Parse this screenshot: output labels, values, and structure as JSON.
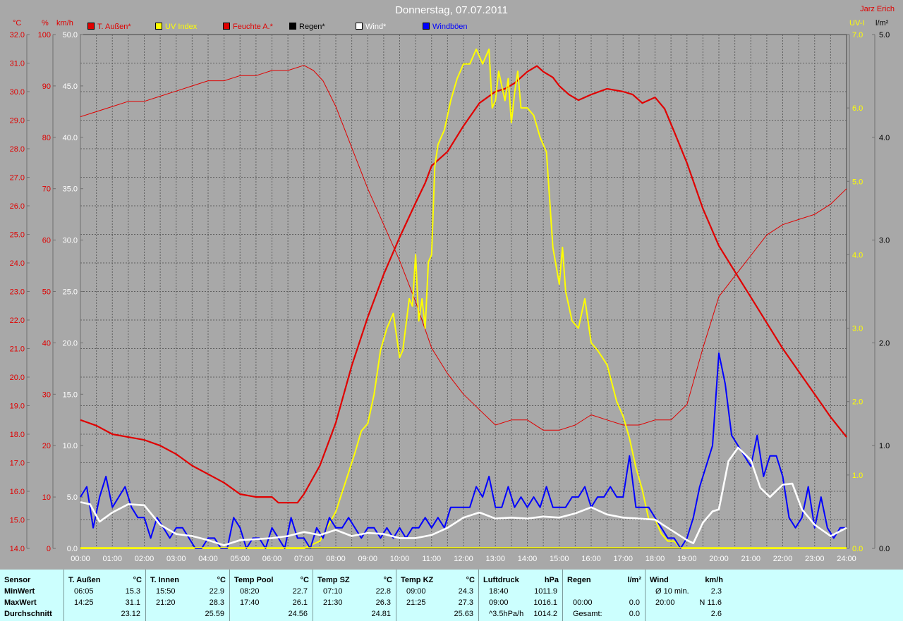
{
  "title": "Donnerstag, 07.07.2011",
  "author": "Jarz Erich",
  "units": {
    "temp": "°C",
    "hum": "%",
    "wind": "km/h",
    "uv": "UV-I",
    "rain": "l/m²"
  },
  "legend": [
    {
      "label": "T. Außen*",
      "color": "#e00000"
    },
    {
      "label": "UV Index",
      "color": "#ffff00"
    },
    {
      "label": "Feuchte A.*",
      "color": "#e00000"
    },
    {
      "label": "Regen*",
      "color": "#000000"
    },
    {
      "label": "Wind*",
      "color": "#ffffff"
    },
    {
      "label": "Windböen",
      "color": "#0000ff"
    }
  ],
  "chart_data": {
    "type": "line",
    "x_labels": [
      "00:00",
      "01:00",
      "02:00",
      "03:00",
      "04:00",
      "05:00",
      "06:00",
      "07:00",
      "08:00",
      "09:00",
      "10:00",
      "11:00",
      "12:00",
      "13:00",
      "14:00",
      "15:00",
      "16:00",
      "17:00",
      "18:00",
      "19:00",
      "20:00",
      "21:00",
      "22:00",
      "23:00",
      "24:00"
    ],
    "axes": {
      "temp": {
        "min": 14.0,
        "max": 32.0,
        "ticks": [
          "14.0",
          "15.0",
          "16.0",
          "17.0",
          "18.0",
          "19.0",
          "20.0",
          "21.0",
          "22.0",
          "23.0",
          "24.0",
          "25.0",
          "26.0",
          "27.0",
          "28.0",
          "29.0",
          "30.0",
          "31.0",
          "32.0"
        ]
      },
      "hum": {
        "min": 0,
        "max": 100,
        "ticks": [
          "0",
          "10",
          "20",
          "30",
          "40",
          "50",
          "60",
          "70",
          "80",
          "90",
          "100"
        ]
      },
      "wind": {
        "min": 0,
        "max": 50,
        "ticks": [
          "0.0",
          "5.0",
          "10.0",
          "15.0",
          "20.0",
          "25.0",
          "30.0",
          "35.0",
          "40.0",
          "45.0",
          "50.0"
        ]
      },
      "uv": {
        "min": 0,
        "max": 7,
        "ticks": [
          "0.0",
          "1.0",
          "2.0",
          "3.0",
          "4.0",
          "5.0",
          "6.0",
          "7.0"
        ]
      },
      "rain": {
        "min": 0,
        "max": 5,
        "ticks": [
          "0.0",
          "1.0",
          "2.0",
          "3.0",
          "4.0",
          "5.0"
        ]
      }
    },
    "grid": true,
    "series": [
      {
        "name": "T. Außen*",
        "axis": "temp",
        "color": "#e00000",
        "x": [
          0,
          0.5,
          1,
          1.5,
          2,
          2.5,
          3,
          3.5,
          4,
          4.5,
          5,
          5.5,
          6,
          6.2,
          6.5,
          6.8,
          7,
          7.5,
          8,
          8.5,
          9,
          9.5,
          10,
          10.5,
          10.8,
          11,
          11.5,
          12,
          12.5,
          13,
          13.3,
          13.6,
          14,
          14.3,
          14.5,
          14.8,
          15,
          15.3,
          15.6,
          16,
          16.5,
          17,
          17.3,
          17.6,
          18,
          18.3,
          18.6,
          19,
          19.5,
          20,
          20.5,
          21,
          21.5,
          22,
          22.5,
          23,
          23.5,
          24
        ],
        "y": [
          18.5,
          18.3,
          18.0,
          17.9,
          17.8,
          17.6,
          17.3,
          16.9,
          16.6,
          16.3,
          15.9,
          15.8,
          15.8,
          15.6,
          15.6,
          15.6,
          15.9,
          16.9,
          18.4,
          20.4,
          22.1,
          23.6,
          24.9,
          26.1,
          26.8,
          27.4,
          27.9,
          28.8,
          29.6,
          30.0,
          30.1,
          30.3,
          30.7,
          30.9,
          30.7,
          30.5,
          30.2,
          29.9,
          29.7,
          29.9,
          30.1,
          30.0,
          29.9,
          29.6,
          29.8,
          29.4,
          28.6,
          27.5,
          25.9,
          24.6,
          23.7,
          22.8,
          21.9,
          21.0,
          20.2,
          19.4,
          18.6,
          17.9
        ]
      },
      {
        "name": "Feuchte A.*",
        "axis": "hum",
        "color": "#e00000",
        "x": [
          0,
          0.5,
          1,
          1.5,
          2,
          2.5,
          3,
          3.5,
          4,
          4.5,
          5,
          5.5,
          6,
          6.5,
          7,
          7.3,
          7.6,
          8,
          8.5,
          9,
          9.5,
          10,
          10.5,
          11,
          11.5,
          12,
          12.5,
          13,
          13.5,
          14,
          14.5,
          15,
          15.5,
          16,
          16.5,
          17,
          17.5,
          18,
          18.5,
          19,
          19.5,
          20,
          20.5,
          21,
          21.5,
          22,
          22.5,
          23,
          23.5,
          24
        ],
        "y": [
          84,
          85,
          86,
          87,
          87,
          88,
          89,
          90,
          91,
          91,
          92,
          92,
          93,
          93,
          94,
          93,
          91,
          86,
          78,
          70,
          63,
          56,
          48,
          39,
          34,
          30,
          27,
          24,
          25,
          25,
          23,
          23,
          24,
          26,
          25,
          24,
          24,
          25,
          25,
          28,
          39,
          49,
          53,
          57,
          61,
          63,
          64,
          65,
          67,
          70
        ]
      },
      {
        "name": "UV Index",
        "axis": "uv",
        "color": "#ffff00",
        "x": [
          0,
          7,
          7.5,
          8,
          8.3,
          8.6,
          8.8,
          9,
          9.2,
          9.4,
          9.6,
          9.8,
          10,
          10.1,
          10.3,
          10.4,
          10.5,
          10.6,
          10.7,
          10.8,
          10.9,
          11,
          11.1,
          11.2,
          11.4,
          11.6,
          11.8,
          12,
          12.2,
          12.4,
          12.6,
          12.8,
          12.9,
          13.0,
          13.1,
          13.2,
          13.3,
          13.4,
          13.5,
          13.6,
          13.7,
          13.8,
          14,
          14.2,
          14.4,
          14.6,
          14.8,
          15,
          15.1,
          15.2,
          15.4,
          15.6,
          15.8,
          16,
          16.2,
          16.5,
          16.8,
          17,
          17.2,
          17.4,
          17.6,
          17.8,
          18,
          18.2,
          18.4,
          18.6,
          18.8,
          19,
          24
        ],
        "y": [
          0,
          0,
          0.1,
          0.5,
          0.9,
          1.3,
          1.6,
          1.7,
          2.1,
          2.7,
          3.0,
          3.2,
          2.6,
          2.7,
          3.4,
          3.3,
          4.0,
          3.1,
          3.4,
          3.0,
          3.9,
          4.0,
          5.2,
          5.5,
          5.7,
          6.1,
          6.4,
          6.6,
          6.6,
          6.8,
          6.6,
          6.8,
          6.0,
          6.1,
          6.5,
          6.3,
          6.1,
          6.4,
          5.8,
          6.2,
          6.5,
          6.0,
          6.0,
          5.9,
          5.6,
          5.4,
          4.1,
          3.6,
          4.1,
          3.5,
          3.1,
          3.0,
          3.4,
          2.8,
          2.7,
          2.5,
          2.0,
          1.8,
          1.5,
          1.1,
          0.8,
          0.4,
          0.4,
          0.2,
          0.1,
          0.1,
          0.0,
          0.0,
          0
        ]
      },
      {
        "name": "Wind*",
        "axis": "wind",
        "color": "#ffffff",
        "x": [
          0,
          0.3,
          0.6,
          1,
          1.5,
          2,
          2.5,
          3,
          3.5,
          4,
          4.5,
          5,
          5.5,
          6,
          6.5,
          7,
          7.5,
          8,
          8.5,
          9,
          9.5,
          10,
          10.5,
          11,
          11.5,
          12,
          12.5,
          13,
          13.5,
          14,
          14.5,
          15,
          15.5,
          16,
          16.5,
          17,
          17.5,
          18,
          18.5,
          19,
          19.2,
          19.5,
          19.8,
          20,
          20.3,
          20.6,
          21,
          21.3,
          21.6,
          22,
          22.3,
          22.6,
          23,
          23.5,
          24
        ],
        "y": [
          4.5,
          4.3,
          2.6,
          3.5,
          4.3,
          4.2,
          2.3,
          1.4,
          1.2,
          0.8,
          0.3,
          0.8,
          0.9,
          1.0,
          1.2,
          1.6,
          1.3,
          1.8,
          1.2,
          1.5,
          1.4,
          1.0,
          1.0,
          1.3,
          2.0,
          3.0,
          3.5,
          2.9,
          3.0,
          2.9,
          3.1,
          3.0,
          3.4,
          4.0,
          3.3,
          3.0,
          2.9,
          2.8,
          1.8,
          0.8,
          0.5,
          2.5,
          3.6,
          3.8,
          8.5,
          9.8,
          8.6,
          5.9,
          5.0,
          6.2,
          6.3,
          3.8,
          2.3,
          1.2,
          2.0
        ]
      },
      {
        "name": "Windböen",
        "axis": "wind",
        "color": "#0000ff",
        "x": [
          0,
          0.2,
          0.4,
          0.6,
          0.8,
          1.0,
          1.2,
          1.4,
          1.6,
          1.8,
          2.0,
          2.2,
          2.4,
          2.6,
          2.8,
          3.0,
          3.2,
          3.4,
          3.6,
          3.8,
          4.0,
          4.2,
          4.4,
          4.6,
          4.8,
          5.0,
          5.2,
          5.4,
          5.6,
          5.8,
          6.0,
          6.2,
          6.4,
          6.6,
          6.8,
          7.0,
          7.2,
          7.4,
          7.6,
          7.8,
          8.0,
          8.2,
          8.4,
          8.6,
          8.8,
          9.0,
          9.2,
          9.4,
          9.6,
          9.8,
          10.0,
          10.2,
          10.4,
          10.6,
          10.8,
          11.0,
          11.2,
          11.4,
          11.6,
          11.8,
          12.0,
          12.2,
          12.4,
          12.6,
          12.8,
          13.0,
          13.2,
          13.4,
          13.6,
          13.8,
          14.0,
          14.2,
          14.4,
          14.6,
          14.8,
          15.0,
          15.2,
          15.4,
          15.6,
          15.8,
          16.0,
          16.2,
          16.4,
          16.6,
          16.8,
          17.0,
          17.2,
          17.4,
          17.6,
          17.8,
          18.0,
          18.2,
          18.4,
          18.6,
          18.8,
          19.0,
          19.2,
          19.4,
          19.6,
          19.8,
          20.0,
          20.2,
          20.4,
          20.6,
          20.8,
          21.0,
          21.2,
          21.4,
          21.6,
          21.8,
          22.0,
          22.2,
          22.4,
          22.6,
          22.8,
          23.0,
          23.2,
          23.4,
          23.6,
          23.8,
          24.0
        ],
        "y": [
          5,
          6,
          2,
          5,
          7,
          4,
          5,
          6,
          4,
          3,
          3,
          1,
          3,
          2,
          1,
          2,
          2,
          1,
          0,
          0,
          1,
          1,
          0,
          0,
          3,
          2,
          0,
          1,
          1,
          0,
          2,
          1,
          0,
          3,
          1,
          1,
          0,
          2,
          1,
          3,
          2,
          2,
          3,
          2,
          1,
          2,
          2,
          1,
          2,
          1,
          2,
          1,
          2,
          2,
          3,
          2,
          3,
          2,
          4,
          4,
          4,
          4,
          6,
          5,
          7,
          4,
          4,
          6,
          4,
          5,
          4,
          5,
          4,
          6,
          4,
          4,
          4,
          5,
          5,
          6,
          4,
          5,
          5,
          6,
          5,
          5,
          9,
          4,
          4,
          4,
          3,
          2,
          1,
          1,
          0,
          1,
          3,
          6,
          8,
          10,
          19,
          16,
          11,
          10,
          9,
          8,
          11,
          7,
          9,
          9,
          7,
          3,
          2,
          3,
          6,
          2,
          5,
          2,
          1,
          2,
          2
        ]
      }
    ]
  },
  "stats": {
    "columns": [
      {
        "header": "Sensor",
        "unit": "",
        "rows": [
          [
            "MinWert",
            "",
            ""
          ],
          [
            "MaxWert",
            "",
            ""
          ],
          [
            "Durchschnitt",
            "",
            ""
          ]
        ]
      },
      {
        "header": "T. Außen",
        "unit": "°C",
        "rows": [
          [
            "06:05",
            "",
            "15.3"
          ],
          [
            "14:25",
            "",
            "31.1"
          ],
          [
            "",
            "",
            "23.12"
          ]
        ]
      },
      {
        "header": "T. Innen",
        "unit": "°C",
        "rows": [
          [
            "15:50",
            "",
            "22.9"
          ],
          [
            "21:20",
            "",
            "28.3"
          ],
          [
            "",
            "",
            "25.59"
          ]
        ]
      },
      {
        "header": "Temp Pool",
        "unit": "°C",
        "rows": [
          [
            "08:20",
            "",
            "22.7"
          ],
          [
            "17:40",
            "",
            "26.1"
          ],
          [
            "",
            "",
            "24.56"
          ]
        ]
      },
      {
        "header": "Temp SZ",
        "unit": "°C",
        "rows": [
          [
            "07:10",
            "",
            "22.8"
          ],
          [
            "21:30",
            "",
            "26.3"
          ],
          [
            "",
            "",
            "24.81"
          ]
        ]
      },
      {
        "header": "Temp KZ",
        "unit": "°C",
        "rows": [
          [
            "09:00",
            "",
            "24.3"
          ],
          [
            "21:25",
            "",
            "27.3"
          ],
          [
            "",
            "",
            "25.63"
          ]
        ]
      },
      {
        "header": "Luftdruck",
        "unit": "hPa",
        "rows": [
          [
            "18:40",
            "",
            "1011.9"
          ],
          [
            "09:00",
            "",
            "1016.1"
          ],
          [
            "^3.5hPa/h",
            "",
            "1014.2"
          ]
        ]
      },
      {
        "header": "Regen",
        "unit": "l/m²",
        "rows": [
          [
            "",
            "",
            ""
          ],
          [
            "00:00",
            "",
            "0.0"
          ],
          [
            "Gesamt:",
            "",
            "0.0"
          ]
        ]
      },
      {
        "header": "Wind",
        "unit": "km/h",
        "rows": [
          [
            "Ø 10 min.",
            "",
            "2.3"
          ],
          [
            "20:00",
            "",
            "N 11.6"
          ],
          [
            "",
            "",
            "2.6"
          ]
        ]
      }
    ]
  }
}
